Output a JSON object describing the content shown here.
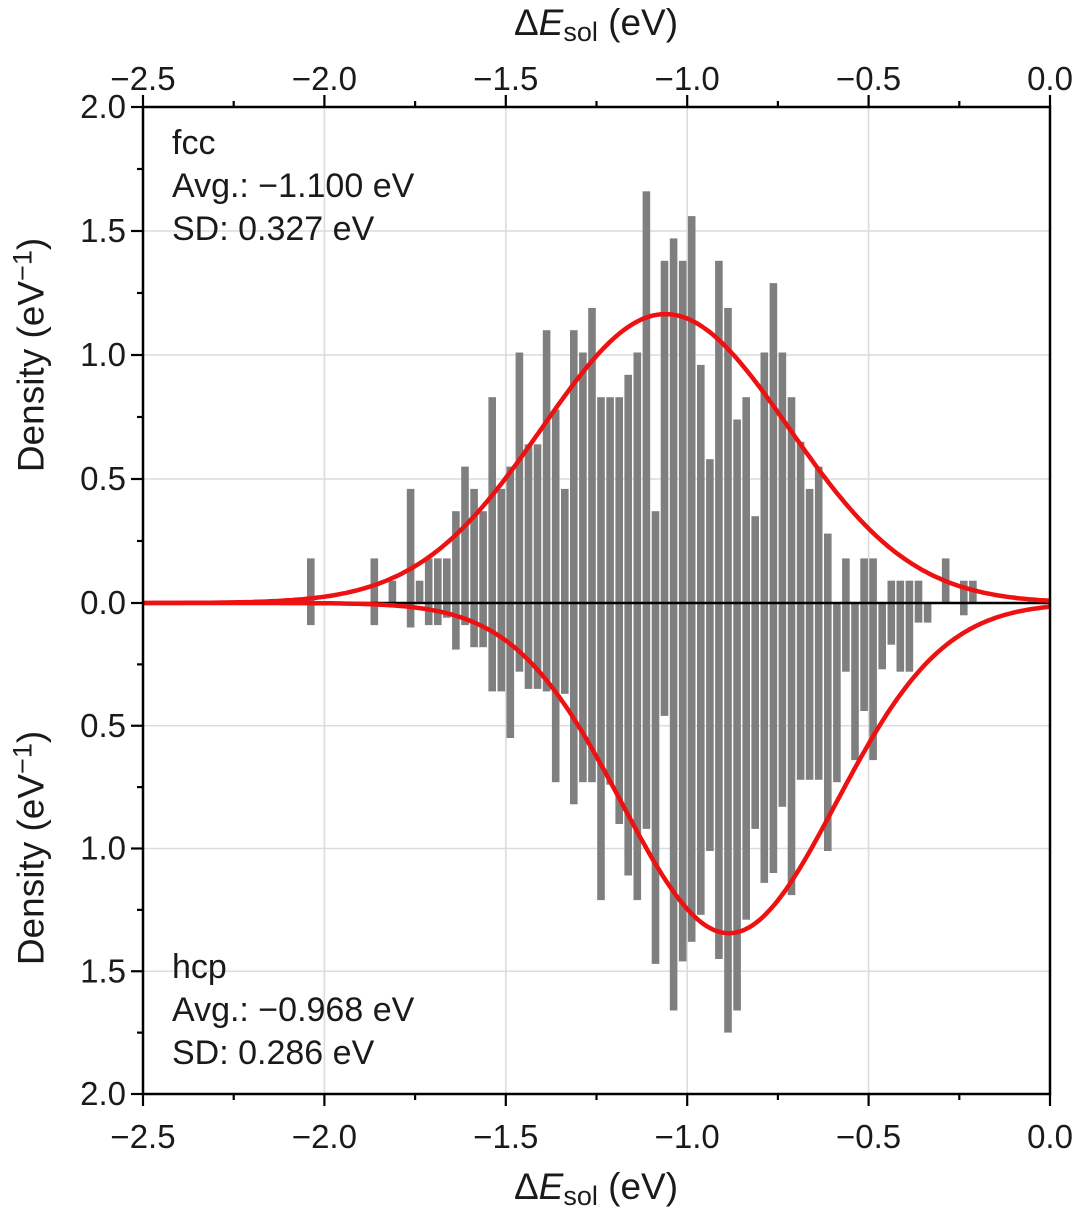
{
  "annotations": {
    "fcc": {
      "label": "fcc",
      "avg_line": "Avg.: −1.100 eV",
      "sd_line": "SD: 0.327 eV"
    },
    "hcp": {
      "label": "hcp",
      "avg_line": "Avg.: −0.968 eV",
      "sd_line": "SD: 0.286 eV"
    }
  },
  "colors": {
    "bar": "#7f7f7f",
    "kde": "#ee1111",
    "zero_line": "#000000",
    "spine": "#000000",
    "grid": "#dcdcdc",
    "text": "#1a1a1a",
    "background": "#ffffff"
  },
  "chart_data": {
    "type": "bar",
    "subtype": "mirrored-histogram-with-kde",
    "bin_width_eV": 0.025,
    "bins": [
      -2.0375,
      -2.0125,
      -1.9875,
      -1.9625,
      -1.9375,
      -1.9125,
      -1.8875,
      -1.8625,
      -1.8375,
      -1.8125,
      -1.7875,
      -1.7625,
      -1.7375,
      -1.7125,
      -1.6875,
      -1.6625,
      -1.6375,
      -1.6125,
      -1.5875,
      -1.5625,
      -1.5375,
      -1.5125,
      -1.4875,
      -1.4625,
      -1.4375,
      -1.4125,
      -1.3875,
      -1.3625,
      -1.3375,
      -1.3125,
      -1.2875,
      -1.2625,
      -1.2375,
      -1.2125,
      -1.1875,
      -1.1625,
      -1.1375,
      -1.1125,
      -1.0875,
      -1.0625,
      -1.0375,
      -1.0125,
      -0.9875,
      -0.9625,
      -0.9375,
      -0.9125,
      -0.8875,
      -0.8625,
      -0.8375,
      -0.8125,
      -0.7875,
      -0.7625,
      -0.7375,
      -0.7125,
      -0.6875,
      -0.6625,
      -0.6375,
      -0.6125,
      -0.5875,
      -0.5625,
      -0.5375,
      -0.5125,
      -0.4875,
      -0.4625,
      -0.4375,
      -0.4125,
      -0.3875,
      -0.3625,
      -0.3375,
      -0.3125,
      -0.2875,
      -0.2625,
      -0.2375,
      -0.2125
    ],
    "series": [
      {
        "name": "fcc",
        "side": "top",
        "avg_eV": -1.1,
        "sd_eV": 0.327,
        "values": [
          0.18,
          0,
          0,
          0,
          0,
          0,
          0,
          0.18,
          0,
          0.09,
          0,
          0.46,
          0.09,
          0.18,
          0.18,
          0.18,
          0.37,
          0.55,
          0.46,
          0.37,
          0.83,
          0.46,
          0.55,
          1.01,
          0.64,
          0.64,
          1.1,
          0.78,
          0.46,
          1.1,
          1.01,
          1.19,
          0.83,
          0.83,
          0.83,
          0.92,
          1.01,
          1.66,
          0.37,
          1.38,
          1.47,
          1.38,
          1.56,
          0.96,
          0.58,
          1.38,
          1.19,
          0.74,
          0.83,
          0.35,
          1.01,
          1.29,
          1.01,
          0.83,
          0.65,
          0.46,
          0.55,
          0.28,
          0,
          0.18,
          0,
          0.18,
          0.18,
          0,
          0.09,
          0.09,
          0.09,
          0.09,
          0,
          0,
          0.18,
          0,
          0.09,
          0.09
        ]
      },
      {
        "name": "hcp",
        "side": "bottom",
        "avg_eV": -0.968,
        "sd_eV": 0.286,
        "values": [
          0.09,
          0,
          0,
          0,
          0,
          0,
          0,
          0.09,
          0,
          0,
          0,
          0.1,
          0,
          0.09,
          0.09,
          0.06,
          0.19,
          0.09,
          0.18,
          0.18,
          0.36,
          0.36,
          0.55,
          0.28,
          0.35,
          0.35,
          0.36,
          0.73,
          0.37,
          0.82,
          0.73,
          0.73,
          1.21,
          0.74,
          0.9,
          1.11,
          1.21,
          0.92,
          1.47,
          0.46,
          1.66,
          1.46,
          1.38,
          1.27,
          1.01,
          1.45,
          1.75,
          1.66,
          1.29,
          0.92,
          1.14,
          1.1,
          0.83,
          1.19,
          0.72,
          0.72,
          0.72,
          1.01,
          0.73,
          0.28,
          0.64,
          0.44,
          0.64,
          0.27,
          0.17,
          0.28,
          0.28,
          0.08,
          0.08,
          0,
          0,
          0,
          0.05,
          0
        ]
      }
    ],
    "kde": [
      {
        "name": "fcc",
        "side": "top",
        "mu": -1.06,
        "sigma": 0.34,
        "peak": 1.165
      },
      {
        "name": "hcp",
        "side": "bottom",
        "mu": -0.885,
        "sigma": 0.295,
        "peak": 1.345
      }
    ],
    "x_axis": {
      "label_delta": "Δ",
      "label_symbol": "E",
      "label_sub": "sol",
      "label_unit": " (eV)",
      "range": [
        -2.5,
        0.0
      ],
      "tick_values": [
        -2.5,
        -2.0,
        -1.5,
        -1.0,
        -0.5,
        0.0
      ],
      "ticks": [
        "−2.5",
        "−2.0",
        "−1.5",
        "−1.0",
        "−0.5",
        "0.0"
      ],
      "minor_tick_values": [
        -2.25,
        -1.75,
        -1.25,
        -0.75,
        -0.25
      ]
    },
    "y_axis": {
      "label_prefix": "Density (eV",
      "label_sup": "−1",
      "label_suffix": ")",
      "range": [
        0,
        2.0
      ],
      "tick_values_top": [
        2.0,
        1.5,
        1.0,
        0.5,
        0.0
      ],
      "ticks_top": [
        "2.0",
        "1.5",
        "1.0",
        "0.5",
        "0.0"
      ],
      "tick_values_bottom": [
        0.5,
        1.0,
        1.5,
        2.0
      ],
      "ticks_bottom": [
        "0.5",
        "1.0",
        "1.5",
        "2.0"
      ],
      "minor_tick_values": [
        0.25,
        0.75,
        1.25,
        1.75
      ],
      "grid_values": [
        0.5,
        1.0,
        1.5
      ]
    }
  }
}
